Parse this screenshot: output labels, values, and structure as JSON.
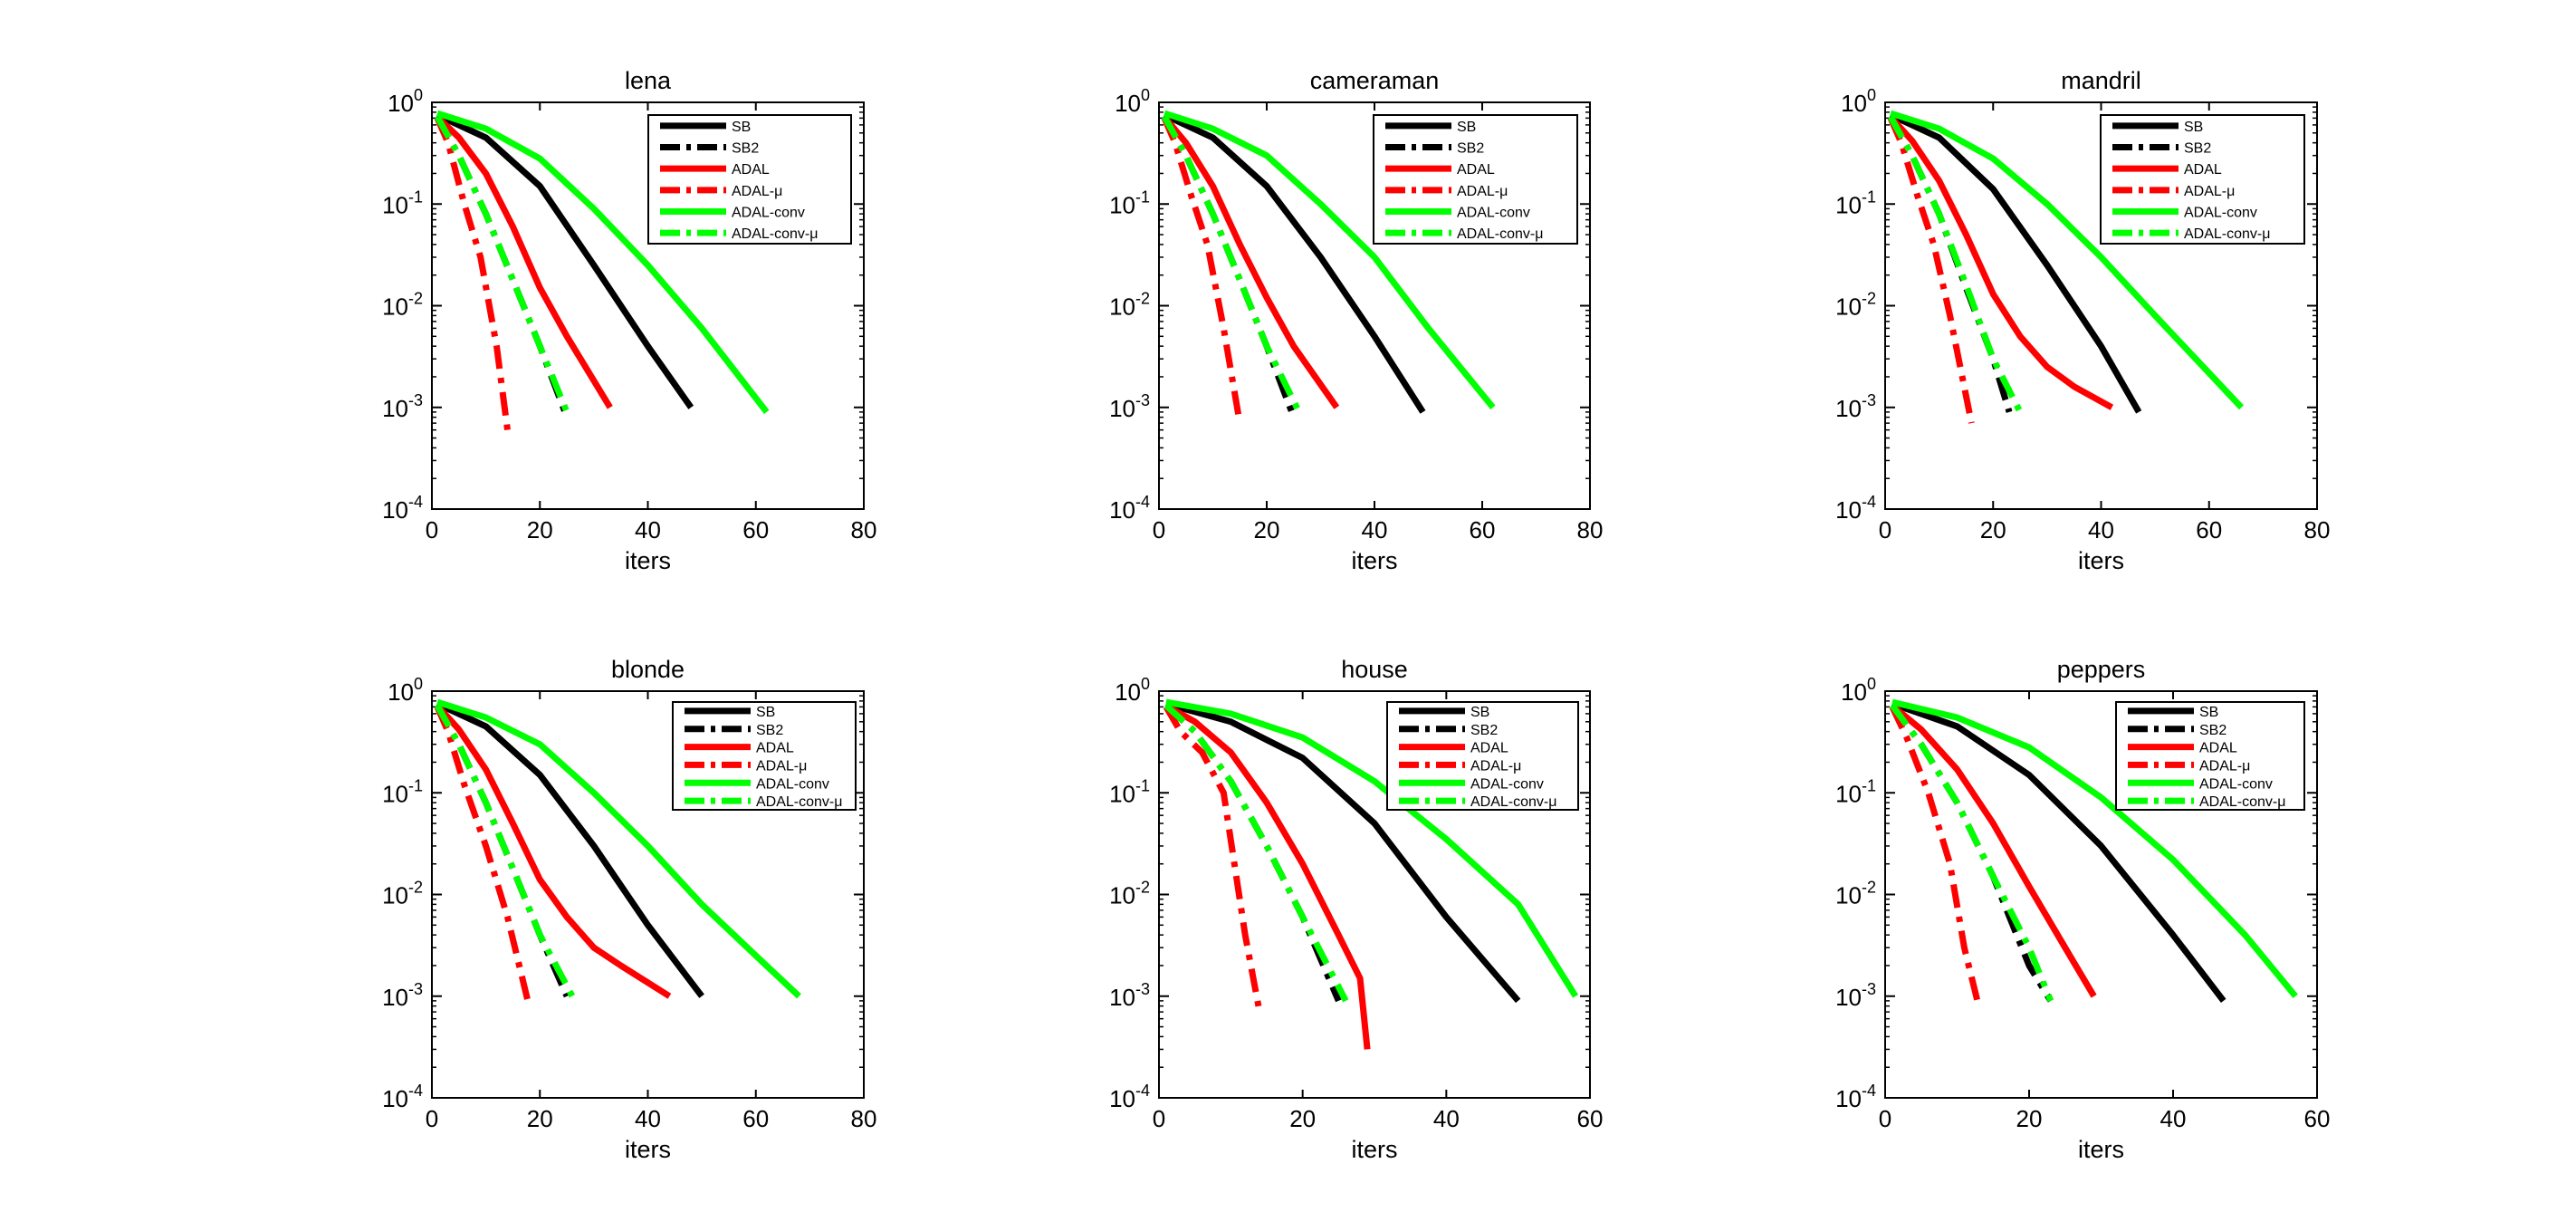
{
  "figure": {
    "xlabel": "iters",
    "ylabel": ""
  },
  "styles": {
    "SB": {
      "color": "#000000",
      "dash": "solid"
    },
    "SB2": {
      "color": "#000000",
      "dash": "dashdot"
    },
    "ADAL": {
      "color": "#ff0000",
      "dash": "solid"
    },
    "ADAL-μ": {
      "color": "#ff0000",
      "dash": "dashdot"
    },
    "ADAL-conv": {
      "color": "#00ff00",
      "dash": "solid"
    },
    "ADAL-conv-μ": {
      "color": "#00ff00",
      "dash": "dashdot"
    }
  },
  "chart_data": [
    {
      "type": "line",
      "title": "lena",
      "xlabel": "iters",
      "ylabel": "",
      "xlim": [
        0,
        80
      ],
      "xticks": [
        0,
        20,
        40,
        60,
        80
      ],
      "ylim": [
        0.0001,
        1
      ],
      "yscale": "log",
      "yticks": [
        "10^0",
        "10^-1",
        "10^-2",
        "10^-3",
        "10^-4"
      ],
      "legend": "top-right",
      "grid": false,
      "series": [
        {
          "name": "SB",
          "x": [
            1,
            10,
            20,
            30,
            40,
            48
          ],
          "y": [
            0.75,
            0.45,
            0.15,
            0.025,
            0.004,
            0.001
          ]
        },
        {
          "name": "SB2",
          "x": [
            1,
            5,
            10,
            15,
            20,
            25
          ],
          "y": [
            0.72,
            0.3,
            0.08,
            0.018,
            0.004,
            0.0008
          ]
        },
        {
          "name": "ADAL",
          "x": [
            1,
            5,
            10,
            15,
            20,
            25,
            33
          ],
          "y": [
            0.72,
            0.45,
            0.2,
            0.06,
            0.015,
            0.005,
            0.001
          ]
        },
        {
          "name": "ADAL-μ",
          "x": [
            1,
            3,
            6,
            9,
            12,
            14
          ],
          "y": [
            0.7,
            0.4,
            0.1,
            0.03,
            0.004,
            0.0006
          ]
        },
        {
          "name": "ADAL-conv",
          "x": [
            1,
            10,
            20,
            30,
            40,
            50,
            62
          ],
          "y": [
            0.78,
            0.55,
            0.28,
            0.09,
            0.025,
            0.006,
            0.0009
          ]
        },
        {
          "name": "ADAL-conv-μ",
          "x": [
            1,
            5,
            10,
            15,
            20,
            25
          ],
          "y": [
            0.72,
            0.3,
            0.08,
            0.018,
            0.004,
            0.0009
          ]
        }
      ]
    },
    {
      "type": "line",
      "title": "cameraman",
      "xlabel": "iters",
      "ylabel": "",
      "xlim": [
        0,
        80
      ],
      "xticks": [
        0,
        20,
        40,
        60,
        80
      ],
      "ylim": [
        0.0001,
        1
      ],
      "yscale": "log",
      "yticks": [
        "10^0",
        "10^-1",
        "10^-2",
        "10^-3",
        "10^-4"
      ],
      "legend": "top-right",
      "grid": false,
      "series": [
        {
          "name": "SB",
          "x": [
            1,
            10,
            20,
            30,
            40,
            49
          ],
          "y": [
            0.75,
            0.45,
            0.15,
            0.03,
            0.005,
            0.0009
          ]
        },
        {
          "name": "SB2",
          "x": [
            1,
            5,
            10,
            15,
            20,
            25
          ],
          "y": [
            0.72,
            0.3,
            0.08,
            0.018,
            0.004,
            0.0008
          ]
        },
        {
          "name": "ADAL",
          "x": [
            1,
            5,
            10,
            15,
            20,
            25,
            33
          ],
          "y": [
            0.72,
            0.4,
            0.15,
            0.04,
            0.012,
            0.004,
            0.001
          ]
        },
        {
          "name": "ADAL-μ",
          "x": [
            1,
            3,
            6,
            9,
            12,
            15
          ],
          "y": [
            0.7,
            0.4,
            0.12,
            0.04,
            0.006,
            0.0007
          ]
        },
        {
          "name": "ADAL-conv",
          "x": [
            1,
            10,
            20,
            30,
            40,
            50,
            62
          ],
          "y": [
            0.78,
            0.55,
            0.3,
            0.1,
            0.03,
            0.006,
            0.001
          ]
        },
        {
          "name": "ADAL-conv-μ",
          "x": [
            1,
            5,
            10,
            15,
            20,
            26
          ],
          "y": [
            0.72,
            0.3,
            0.08,
            0.018,
            0.004,
            0.0009
          ]
        }
      ]
    },
    {
      "type": "line",
      "title": "mandril",
      "xlabel": "iters",
      "ylabel": "",
      "xlim": [
        0,
        80
      ],
      "xticks": [
        0,
        20,
        40,
        60,
        80
      ],
      "ylim": [
        0.0001,
        1
      ],
      "yscale": "log",
      "yticks": [
        "10^0",
        "10^-1",
        "10^-2",
        "10^-3",
        "10^-4"
      ],
      "legend": "top-right",
      "grid": false,
      "series": [
        {
          "name": "SB",
          "x": [
            1,
            10,
            20,
            30,
            40,
            47
          ],
          "y": [
            0.75,
            0.45,
            0.14,
            0.025,
            0.004,
            0.0009
          ]
        },
        {
          "name": "SB2",
          "x": [
            1,
            5,
            10,
            15,
            20,
            23
          ],
          "y": [
            0.72,
            0.3,
            0.08,
            0.015,
            0.003,
            0.0009
          ]
        },
        {
          "name": "ADAL",
          "x": [
            1,
            5,
            10,
            15,
            20,
            25,
            30,
            35,
            42
          ],
          "y": [
            0.72,
            0.42,
            0.17,
            0.05,
            0.013,
            0.005,
            0.0025,
            0.0016,
            0.001
          ]
        },
        {
          "name": "ADAL-μ",
          "x": [
            1,
            3,
            6,
            9,
            12,
            16
          ],
          "y": [
            0.7,
            0.4,
            0.12,
            0.04,
            0.008,
            0.0007
          ]
        },
        {
          "name": "ADAL-conv",
          "x": [
            1,
            10,
            20,
            30,
            40,
            50,
            66
          ],
          "y": [
            0.78,
            0.55,
            0.28,
            0.1,
            0.03,
            0.008,
            0.001
          ]
        },
        {
          "name": "ADAL-conv-μ",
          "x": [
            1,
            5,
            10,
            15,
            20,
            25
          ],
          "y": [
            0.72,
            0.3,
            0.08,
            0.016,
            0.003,
            0.0009
          ]
        }
      ]
    },
    {
      "type": "line",
      "title": "blonde",
      "xlabel": "iters",
      "ylabel": "",
      "xlim": [
        0,
        80
      ],
      "xticks": [
        0,
        20,
        40,
        60,
        80
      ],
      "ylim": [
        0.0001,
        1
      ],
      "yscale": "log",
      "yticks": [
        "10^0",
        "10^-1",
        "10^-2",
        "10^-3",
        "10^-4"
      ],
      "legend": "top-right",
      "grid": false,
      "series": [
        {
          "name": "SB",
          "x": [
            1,
            10,
            20,
            30,
            40,
            50
          ],
          "y": [
            0.75,
            0.45,
            0.15,
            0.03,
            0.005,
            0.001
          ]
        },
        {
          "name": "SB2",
          "x": [
            1,
            5,
            10,
            15,
            20,
            25
          ],
          "y": [
            0.72,
            0.3,
            0.08,
            0.018,
            0.004,
            0.001
          ]
        },
        {
          "name": "ADAL",
          "x": [
            1,
            5,
            10,
            15,
            20,
            25,
            30,
            35,
            44
          ],
          "y": [
            0.72,
            0.42,
            0.17,
            0.05,
            0.014,
            0.006,
            0.003,
            0.002,
            0.001
          ]
        },
        {
          "name": "ADAL-μ",
          "x": [
            1,
            3,
            6,
            10,
            14,
            18
          ],
          "y": [
            0.7,
            0.4,
            0.12,
            0.03,
            0.006,
            0.0008
          ]
        },
        {
          "name": "ADAL-conv",
          "x": [
            1,
            10,
            20,
            30,
            40,
            50,
            60,
            68
          ],
          "y": [
            0.78,
            0.55,
            0.3,
            0.1,
            0.03,
            0.008,
            0.0025,
            0.001
          ]
        },
        {
          "name": "ADAL-conv-μ",
          "x": [
            1,
            5,
            10,
            15,
            20,
            26
          ],
          "y": [
            0.72,
            0.3,
            0.08,
            0.018,
            0.004,
            0.001
          ]
        }
      ]
    },
    {
      "type": "line",
      "title": "house",
      "xlabel": "iters",
      "ylabel": "",
      "xlim": [
        0,
        60
      ],
      "xticks": [
        0,
        20,
        40,
        60
      ],
      "ylim": [
        0.0001,
        1
      ],
      "yscale": "log",
      "yticks": [
        "10^0",
        "10^-1",
        "10^-2",
        "10^-3",
        "10^-4"
      ],
      "legend": "top-right",
      "grid": false,
      "series": [
        {
          "name": "SB",
          "x": [
            1,
            10,
            20,
            30,
            40,
            50
          ],
          "y": [
            0.75,
            0.5,
            0.22,
            0.05,
            0.006,
            0.0009
          ]
        },
        {
          "name": "SB2",
          "x": [
            1,
            5,
            10,
            15,
            20,
            25
          ],
          "y": [
            0.72,
            0.4,
            0.13,
            0.03,
            0.006,
            0.0009
          ]
        },
        {
          "name": "ADAL",
          "x": [
            1,
            5,
            10,
            15,
            20,
            25,
            28,
            29
          ],
          "y": [
            0.72,
            0.5,
            0.25,
            0.08,
            0.02,
            0.004,
            0.0015,
            0.0003
          ]
        },
        {
          "name": "ADAL-μ",
          "x": [
            1,
            3,
            6,
            9,
            12,
            14
          ],
          "y": [
            0.7,
            0.4,
            0.25,
            0.1,
            0.004,
            0.0007
          ]
        },
        {
          "name": "ADAL-conv",
          "x": [
            1,
            10,
            20,
            30,
            40,
            50,
            58
          ],
          "y": [
            0.78,
            0.6,
            0.35,
            0.13,
            0.035,
            0.008,
            0.001
          ]
        },
        {
          "name": "ADAL-conv-μ",
          "x": [
            1,
            5,
            10,
            15,
            20,
            26
          ],
          "y": [
            0.72,
            0.4,
            0.13,
            0.03,
            0.006,
            0.0009
          ]
        }
      ]
    },
    {
      "type": "line",
      "title": "peppers",
      "xlabel": "iters",
      "ylabel": "",
      "xlim": [
        0,
        60
      ],
      "xticks": [
        0,
        20,
        40,
        60
      ],
      "ylim": [
        0.0001,
        1
      ],
      "yscale": "log",
      "yticks": [
        "10^0",
        "10^-1",
        "10^-2",
        "10^-3",
        "10^-4"
      ],
      "legend": "top-right",
      "grid": false,
      "series": [
        {
          "name": "SB",
          "x": [
            1,
            10,
            20,
            30,
            40,
            47
          ],
          "y": [
            0.75,
            0.45,
            0.15,
            0.03,
            0.004,
            0.0009
          ]
        },
        {
          "name": "SB2",
          "x": [
            1,
            5,
            10,
            15,
            20,
            23
          ],
          "y": [
            0.72,
            0.3,
            0.08,
            0.015,
            0.002,
            0.0009
          ]
        },
        {
          "name": "ADAL",
          "x": [
            1,
            5,
            10,
            15,
            20,
            25,
            29
          ],
          "y": [
            0.72,
            0.42,
            0.17,
            0.05,
            0.012,
            0.003,
            0.001
          ]
        },
        {
          "name": "ADAL-μ",
          "x": [
            1,
            3,
            6,
            9,
            11,
            13
          ],
          "y": [
            0.7,
            0.35,
            0.1,
            0.02,
            0.003,
            0.0008
          ]
        },
        {
          "name": "ADAL-conv",
          "x": [
            1,
            10,
            20,
            30,
            40,
            50,
            57
          ],
          "y": [
            0.78,
            0.55,
            0.28,
            0.09,
            0.022,
            0.004,
            0.001
          ]
        },
        {
          "name": "ADAL-conv-μ",
          "x": [
            1,
            5,
            10,
            15,
            20,
            23
          ],
          "y": [
            0.72,
            0.3,
            0.08,
            0.015,
            0.003,
            0.0009
          ]
        }
      ]
    }
  ]
}
